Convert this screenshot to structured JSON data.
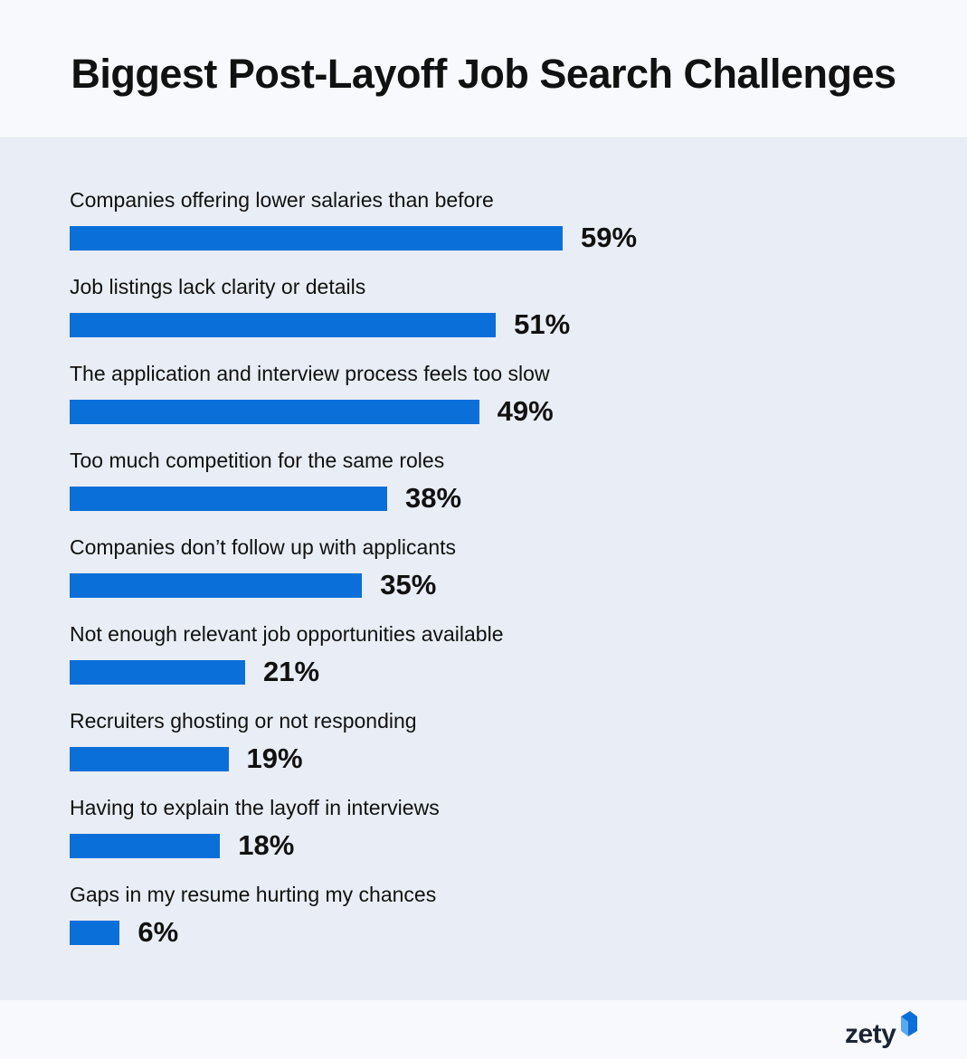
{
  "chart_data": {
    "type": "bar",
    "orientation": "horizontal",
    "title": "Biggest Post-Layoff Job Search Challenges",
    "categories": [
      "Companies offering lower salaries than before",
      "Job listings lack clarity or details",
      "The application and interview process feels too slow",
      "Too much competition for the same roles",
      "Companies don’t follow up with applicants",
      "Not enough relevant job opportunities available",
      "Recruiters ghosting or not responding",
      "Having to explain the layoff in interviews",
      "Gaps in my resume hurting my chances"
    ],
    "values": [
      59,
      51,
      49,
      38,
      35,
      21,
      19,
      18,
      6
    ],
    "value_labels": [
      "59%",
      "51%",
      "49%",
      "38%",
      "35%",
      "21%",
      "19%",
      "18%",
      "6%"
    ],
    "unit": "%",
    "bar_color": "#0a6fd8",
    "grid": false,
    "legend": "none"
  },
  "brand": {
    "name": "zety",
    "mark_colors": [
      "#0a6fd8",
      "#5aa9f0"
    ]
  }
}
